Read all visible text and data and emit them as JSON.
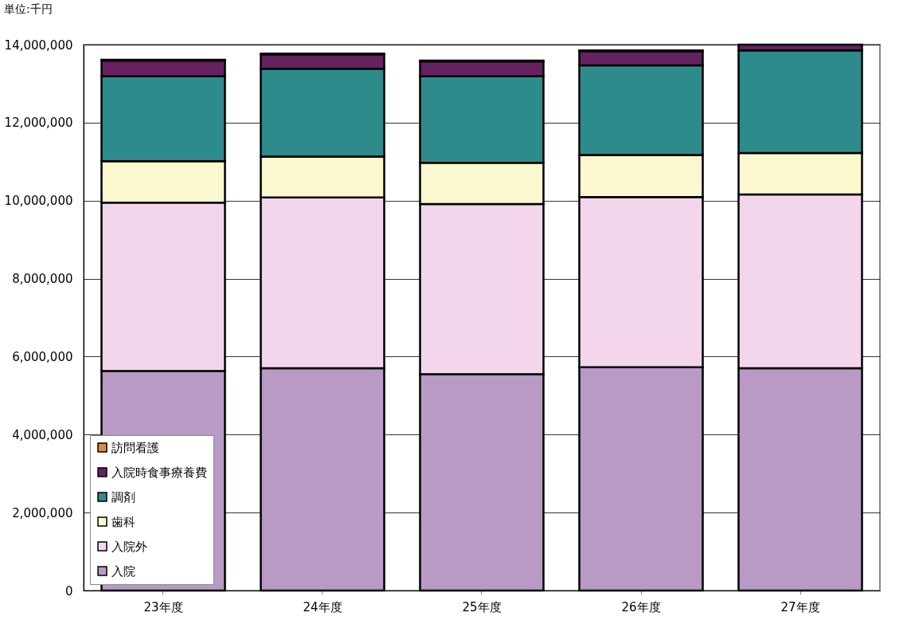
{
  "chart_data": {
    "type": "bar",
    "stacked": true,
    "title": "単位:千円",
    "categories": [
      "23年度",
      "24年度",
      "25年度",
      "26年度",
      "27年度"
    ],
    "series": [
      {
        "name": "入院",
        "color": "#b89ac4",
        "values": [
          5630000,
          5700000,
          5550000,
          5730000,
          5700000
        ]
      },
      {
        "name": "入院外",
        "color": "#f3d6ec",
        "values": [
          4320000,
          4380000,
          4360000,
          4360000,
          4460000
        ]
      },
      {
        "name": "歯科",
        "color": "#fbf8d0",
        "values": [
          1060000,
          1050000,
          1060000,
          1080000,
          1060000
        ]
      },
      {
        "name": "調剤",
        "color": "#2e8b8b",
        "values": [
          2180000,
          2250000,
          2220000,
          2300000,
          2630000
        ]
      },
      {
        "name": "入院時食事療養費",
        "color": "#66215f",
        "values": [
          400000,
          370000,
          380000,
          360000,
          150000
        ]
      },
      {
        "name": "訪問看護",
        "color": "#e08a3c",
        "values": [
          20000,
          20000,
          20000,
          20000,
          null
        ]
      }
    ],
    "ylim": [
      0,
      14000000
    ],
    "yticks": [
      0,
      {
        "value": 2000000,
        "label": "2,000,000"
      },
      {
        "value": 4000000,
        "label": "4,000,000"
      },
      {
        "value": 6000000,
        "label": "6,000,000"
      },
      {
        "value": 8000000,
        "label": "8,000,000"
      },
      {
        "value": 10000000,
        "label": "10,000,000"
      },
      {
        "value": 12000000,
        "label": "12,000,000"
      },
      {
        "value": 14000000,
        "label": "14,000,000"
      }
    ],
    "grid": "y",
    "legend": "bottom left"
  }
}
